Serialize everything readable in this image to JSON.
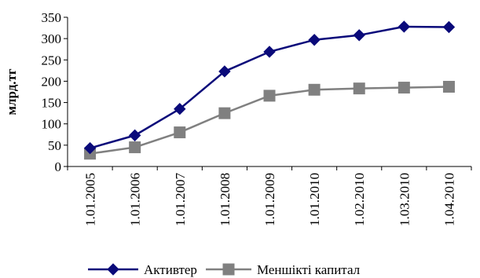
{
  "chart_data": {
    "type": "line",
    "title": "",
    "xlabel": "",
    "ylabel": "млрд.тг",
    "ylim": [
      0,
      350
    ],
    "yticks": [
      0,
      50,
      100,
      150,
      200,
      250,
      300,
      350
    ],
    "grid": false,
    "legend_position": "bottom",
    "categories": [
      "1.01.2005",
      "1.01.2006",
      "1.01.2007",
      "1.01.2008",
      "1.01.2009",
      "1.01.2010",
      "1.02.2010",
      "1.03.2010",
      "1.04.2010"
    ],
    "series": [
      {
        "name": "Активтер",
        "marker": "diamond",
        "color": "#0a0a7a",
        "values": [
          43,
          73,
          135,
          223,
          269,
          297,
          308,
          328,
          327
        ]
      },
      {
        "name": "Меншікті капитал",
        "marker": "square",
        "color": "#808080",
        "values": [
          30,
          45,
          80,
          125,
          166,
          180,
          183,
          185,
          187
        ]
      }
    ]
  }
}
